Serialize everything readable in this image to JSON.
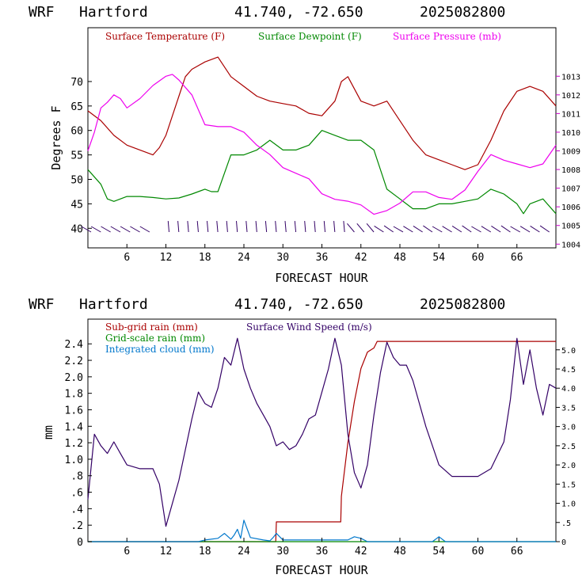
{
  "header": {
    "model": "WRF",
    "site": "Hartford",
    "coords": "41.740, -72.650",
    "init": "2025082800"
  },
  "colors": {
    "temperature": "#aa0000",
    "dewpoint": "#008800",
    "pressure": "#ee00ee",
    "subgrid_rain": "#aa0000",
    "grid_rain": "#008800",
    "cloud": "#0077cc",
    "wind_speed": "#330066",
    "axis_right": "#cc00cc"
  },
  "chart_data": [
    {
      "type": "line",
      "xlabel": "FORECAST HOUR",
      "ylabel": "Degrees F",
      "xlim": [
        0,
        72
      ],
      "ylim": [
        36,
        81
      ],
      "xticks": [
        6,
        12,
        18,
        24,
        30,
        36,
        42,
        48,
        54,
        60,
        66
      ],
      "xtick_labels": [
        "6",
        "12",
        "18",
        "24",
        "30",
        "36",
        "42",
        "48",
        "54",
        "60",
        "66"
      ],
      "yticks": [
        40,
        45,
        50,
        55,
        60,
        65,
        70
      ],
      "ytick_labels": [
        "40",
        "45",
        "50",
        "55",
        "60",
        "65",
        "70"
      ],
      "y2lim": [
        1003.8,
        1015.6
      ],
      "y2ticks": [
        1004,
        1005,
        1006,
        1007,
        1008,
        1009,
        1010,
        1011,
        1012,
        1013
      ],
      "y2tick_labels": [
        "1004",
        "1005",
        "1006",
        "1007",
        "1008",
        "1009",
        "1010",
        "1011",
        "1012",
        "1013"
      ],
      "legend": [
        "Surface Temperature (F)",
        "Surface Dewpoint (F)",
        "Surface Pressure (mb)"
      ],
      "legend_position": "top",
      "series": [
        {
          "name": "Surface Temperature (F)",
          "axis": "left",
          "x": [
            0,
            2,
            4,
            6,
            8,
            10,
            11,
            12,
            13,
            14,
            15,
            16,
            18,
            20,
            21,
            22,
            24,
            26,
            28,
            30,
            32,
            34,
            36,
            38,
            39,
            40,
            42,
            44,
            46,
            48,
            50,
            52,
            54,
            56,
            58,
            60,
            62,
            64,
            66,
            68,
            70,
            72
          ],
          "values": [
            64,
            62,
            59,
            57,
            56,
            55,
            56.5,
            59,
            63,
            67,
            71,
            72.5,
            74,
            75,
            73,
            71,
            69,
            67,
            66,
            65.5,
            65,
            63.5,
            63,
            66,
            70,
            71,
            66,
            65,
            66,
            62,
            58,
            55,
            54,
            53,
            52,
            53,
            58,
            64,
            68,
            69,
            68,
            65
          ]
        },
        {
          "name": "Surface Dewpoint (F)",
          "axis": "left",
          "x": [
            0,
            2,
            3,
            4,
            6,
            8,
            10,
            12,
            14,
            16,
            18,
            19,
            20,
            22,
            24,
            26,
            28,
            30,
            32,
            34,
            36,
            38,
            40,
            42,
            44,
            46,
            48,
            50,
            52,
            54,
            56,
            58,
            60,
            62,
            64,
            66,
            67,
            68,
            70,
            72
          ],
          "values": [
            52,
            49,
            46,
            45.5,
            46.5,
            46.5,
            46.3,
            46,
            46.2,
            47,
            48,
            47.5,
            47.5,
            55,
            55,
            56,
            58,
            56,
            56,
            57,
            60,
            59,
            58,
            58,
            56,
            48,
            46,
            44,
            44,
            45,
            45,
            45.5,
            46,
            48,
            47,
            45,
            43,
            45,
            46,
            43
          ]
        },
        {
          "name": "Surface Pressure (mb)",
          "axis": "right",
          "x": [
            0,
            1,
            2,
            3,
            4,
            5,
            6,
            8,
            10,
            12,
            13,
            14,
            16,
            18,
            20,
            22,
            24,
            26,
            28,
            30,
            32,
            34,
            36,
            38,
            40,
            42,
            44,
            46,
            48,
            50,
            52,
            54,
            56,
            58,
            60,
            62,
            64,
            66,
            68,
            70,
            72
          ],
          "values": [
            1009,
            1010,
            1011.3,
            1011.6,
            1012,
            1011.8,
            1011.3,
            1011.8,
            1012.5,
            1013,
            1013.1,
            1012.8,
            1012,
            1010.4,
            1010.3,
            1010.3,
            1010,
            1009.3,
            1008.8,
            1008.1,
            1007.8,
            1007.5,
            1006.7,
            1006.4,
            1006.3,
            1006.1,
            1005.6,
            1005.8,
            1006.2,
            1006.8,
            1006.8,
            1006.5,
            1006.4,
            1006.9,
            1007.9,
            1008.8,
            1008.5,
            1008.3,
            1008.1,
            1008.3,
            1009.3
          ]
        }
      ]
    },
    {
      "type": "line",
      "xlabel": "FORECAST HOUR",
      "ylabel": "mm",
      "xlim": [
        0,
        72
      ],
      "ylim": [
        0,
        2.7
      ],
      "xticks": [
        6,
        12,
        18,
        24,
        30,
        36,
        42,
        48,
        54,
        60,
        66
      ],
      "xtick_labels": [
        "6",
        "12",
        "18",
        "24",
        "30",
        "36",
        "42",
        "48",
        "54",
        "60",
        "66"
      ],
      "yticks": [
        0,
        0.2,
        0.4,
        0.6,
        0.8,
        1.0,
        1.2,
        1.4,
        1.6,
        1.8,
        2.0,
        2.2,
        2.4
      ],
      "ytick_labels": [
        "0",
        ".2",
        ".4",
        ".6",
        ".8",
        "1.0",
        "1.2",
        "1.4",
        "1.6",
        "1.8",
        "2.0",
        "2.2",
        "2.4"
      ],
      "y2lim": [
        0,
        5.8
      ],
      "y2ticks": [
        0,
        0.5,
        1.0,
        1.5,
        2.0,
        2.5,
        3.0,
        3.5,
        4.0,
        4.5,
        5.0
      ],
      "y2tick_labels": [
        "0",
        ".5",
        "1.0",
        "1.5",
        "2.0",
        "2.5",
        "3.0",
        "3.5",
        "4.0",
        "4.5",
        "5.0"
      ],
      "legend": [
        "Sub-grid rain (mm)",
        "Grid-scale rain (mm)",
        "Integrated cloud (mm)",
        "Surface Wind Speed (m/s)"
      ],
      "legend_position": "top-left",
      "series": [
        {
          "name": "Sub-grid rain (mm)",
          "axis": "left",
          "x": [
            0,
            28.9,
            29,
            38.9,
            39,
            40,
            41,
            42,
            43,
            44,
            44.5,
            72
          ],
          "values": [
            0,
            0,
            0.24,
            0.24,
            0.55,
            1.2,
            1.7,
            2.1,
            2.3,
            2.35,
            2.43,
            2.43
          ]
        },
        {
          "name": "Grid-scale rain (mm)",
          "axis": "left",
          "x": [
            0,
            72
          ],
          "values": [
            0,
            0
          ]
        },
        {
          "name": "Integrated cloud (mm)",
          "axis": "left",
          "x": [
            0,
            17,
            18,
            20,
            21,
            22,
            22.5,
            23,
            23.5,
            24,
            25,
            27,
            28,
            28.5,
            29,
            30,
            40,
            41,
            42,
            43,
            44,
            53,
            54,
            55,
            60,
            72
          ],
          "values": [
            0,
            0,
            0.02,
            0.04,
            0.1,
            0.03,
            0.08,
            0.15,
            0.04,
            0.26,
            0.05,
            0.02,
            0.01,
            0.05,
            0.1,
            0.02,
            0.02,
            0.06,
            0.04,
            0,
            0,
            0,
            0.06,
            0,
            0,
            0
          ]
        },
        {
          "name": "Surface Wind Speed (m/s)",
          "axis": "right",
          "x": [
            0,
            1,
            2,
            3,
            4,
            5,
            6,
            8,
            10,
            11,
            12,
            13,
            14,
            16,
            17,
            18,
            19,
            20,
            21,
            22,
            23,
            24,
            25,
            26,
            27,
            28,
            29,
            30,
            31,
            32,
            33,
            34,
            35,
            36,
            37,
            38,
            39,
            40,
            41,
            42,
            43,
            44,
            45,
            46,
            47,
            48,
            49,
            50,
            52,
            54,
            56,
            58,
            59,
            60,
            62,
            64,
            65,
            66,
            67,
            68,
            69,
            70,
            71,
            72
          ],
          "values": [
            1.1,
            2.8,
            2.5,
            2.3,
            2.6,
            2.3,
            2.0,
            1.9,
            1.9,
            1.5,
            0.4,
            1.0,
            1.6,
            3.2,
            3.9,
            3.6,
            3.5,
            4.0,
            4.8,
            4.6,
            5.3,
            4.5,
            4.0,
            3.6,
            3.3,
            3.0,
            2.5,
            2.6,
            2.4,
            2.5,
            2.8,
            3.2,
            3.3,
            3.9,
            4.5,
            5.3,
            4.6,
            2.8,
            1.8,
            1.4,
            2.0,
            3.3,
            4.4,
            5.2,
            4.8,
            4.6,
            4.6,
            4.2,
            3.0,
            2.0,
            1.7,
            1.7,
            1.7,
            1.7,
            1.9,
            2.6,
            3.7,
            5.3,
            4.1,
            5.0,
            4.0,
            3.3,
            4.1,
            4.0
          ]
        }
      ]
    }
  ]
}
